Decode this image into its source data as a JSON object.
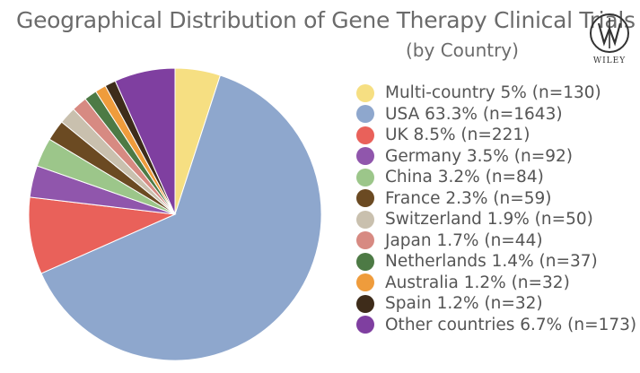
{
  "chart_data": {
    "type": "pie",
    "title": "Geographical Distribution of Gene Therapy Clinical Trials",
    "subtitle": "(by Country)",
    "legend_position": "right",
    "slices": [
      {
        "label": "Multi-country 5% (n=130)",
        "name": "Multi-country",
        "percent": 5.0,
        "n": 130,
        "color": "#f6df82"
      },
      {
        "label": "USA 63.3% (n=1643)",
        "name": "USA",
        "percent": 63.3,
        "n": 1643,
        "color": "#8ea7cd"
      },
      {
        "label": "UK 8.5% (n=221)",
        "name": "UK",
        "percent": 8.5,
        "n": 221,
        "color": "#e9615a"
      },
      {
        "label": "Germany 3.5% (n=92)",
        "name": "Germany",
        "percent": 3.5,
        "n": 92,
        "color": "#9056ac"
      },
      {
        "label": "China 3.2% (n=84)",
        "name": "China",
        "percent": 3.2,
        "n": 84,
        "color": "#9cc68a"
      },
      {
        "label": "France 2.3% (n=59)",
        "name": "France",
        "percent": 2.3,
        "n": 59,
        "color": "#6b4a22"
      },
      {
        "label": "Switzerland 1.9% (n=50)",
        "name": "Switzerland",
        "percent": 1.9,
        "n": 50,
        "color": "#c9c0ae"
      },
      {
        "label": "Japan 1.7% (n=44)",
        "name": "Japan",
        "percent": 1.7,
        "n": 44,
        "color": "#d78a82"
      },
      {
        "label": "Netherlands 1.4% (n=37)",
        "name": "Netherlands",
        "percent": 1.4,
        "n": 37,
        "color": "#4d7a45"
      },
      {
        "label": "Australia 1.2% (n=32)",
        "name": "Australia",
        "percent": 1.2,
        "n": 32,
        "color": "#ef9c3c"
      },
      {
        "label": "Spain 1.2% (n=32)",
        "name": "Spain",
        "percent": 1.2,
        "n": 32,
        "color": "#3e2c1a"
      },
      {
        "label": "Other countries 6.7% (n=173)",
        "name": "Other countries",
        "percent": 6.7,
        "n": 173,
        "color": "#7f3fa0"
      }
    ]
  },
  "logo": {
    "text": "WILEY",
    "icon": "wiley-logo-icon"
  }
}
